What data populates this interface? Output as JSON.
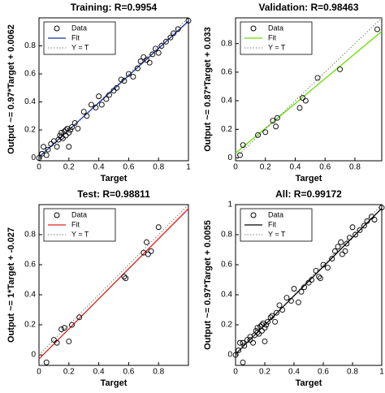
{
  "chart_data": [
    {
      "type": "scatter",
      "title": "Training: R=0.9954",
      "xlabel": "Target",
      "ylabel": "Output ~= 0.97*Target + 0.0062",
      "xlim": [
        0,
        1
      ],
      "ylim": [
        -0.02,
        1
      ],
      "xticks": [
        0,
        0.2,
        0.4,
        0.6,
        0.8,
        1
      ],
      "yticks": [
        0,
        0.2,
        0.4,
        0.6,
        0.8
      ],
      "legend": "upper left",
      "series": [
        {
          "name": "Data",
          "style": "marker",
          "color": "#000000",
          "x": [
            0,
            0.02,
            0.03,
            0.05,
            0.06,
            0.08,
            0.1,
            0.12,
            0.13,
            0.14,
            0.15,
            0.15,
            0.16,
            0.17,
            0.18,
            0.18,
            0.19,
            0.2,
            0.21,
            0.22,
            0.2,
            0.24,
            0.26,
            0.3,
            0.32,
            0.35,
            0.38,
            0.4,
            0.42,
            0.45,
            0.47,
            0.5,
            0.52,
            0.55,
            0.57,
            0.6,
            0.63,
            0.66,
            0.68,
            0.7,
            0.72,
            0.74,
            0.76,
            0.78,
            0.8,
            0.82,
            0.85,
            0.88,
            0.9,
            0.93,
            1
          ],
          "values": [
            0,
            0.03,
            0.08,
            0.02,
            0.06,
            0.1,
            0.12,
            0.08,
            0.13,
            0.16,
            0.15,
            0.18,
            0.14,
            0.19,
            0.2,
            0.16,
            0.21,
            0.18,
            0.2,
            0.22,
            0.08,
            0.25,
            0.21,
            0.33,
            0.3,
            0.38,
            0.36,
            0.44,
            0.38,
            0.42,
            0.45,
            0.48,
            0.5,
            0.56,
            0.55,
            0.6,
            0.58,
            0.64,
            0.69,
            0.72,
            0.7,
            0.68,
            0.74,
            0.78,
            0.75,
            0.8,
            0.83,
            0.86,
            0.89,
            0.92,
            0.98
          ]
        },
        {
          "name": "Fit",
          "style": "line",
          "color": "#1030a0",
          "x": [
            0,
            1
          ],
          "values": [
            0.0062,
            0.9762
          ]
        },
        {
          "name": "Y = T",
          "style": "dotted",
          "color": "#808080",
          "x": [
            0,
            1
          ],
          "values": [
            0,
            1
          ]
        }
      ]
    },
    {
      "type": "scatter",
      "title": "Validation: R=0.98463",
      "xlabel": "Target",
      "ylabel": "Output ~= 0.87*Target + 0.033",
      "xlim": [
        0,
        0.98
      ],
      "ylim": [
        -0.02,
        0.98
      ],
      "xticks": [
        0,
        0.2,
        0.4,
        0.6,
        0.8
      ],
      "yticks": [
        0,
        0.2,
        0.4,
        0.6,
        0.8
      ],
      "legend": "upper left",
      "series": [
        {
          "name": "Data",
          "style": "marker",
          "color": "#000000",
          "x": [
            0.03,
            0.05,
            0.15,
            0.2,
            0.25,
            0.27,
            0.28,
            0.43,
            0.45,
            0.47,
            0.55,
            0.7,
            0.95
          ],
          "values": [
            0.02,
            0.09,
            0.16,
            0.18,
            0.26,
            0.22,
            0.28,
            0.35,
            0.42,
            0.4,
            0.56,
            0.62,
            0.9
          ]
        },
        {
          "name": "Fit",
          "style": "line",
          "color": "#66dd00",
          "x": [
            0,
            0.98
          ],
          "values": [
            0.033,
            0.8856
          ]
        },
        {
          "name": "Y = T",
          "style": "dotted",
          "color": "#808080",
          "x": [
            0,
            0.98
          ],
          "values": [
            0,
            0.98
          ]
        }
      ]
    },
    {
      "type": "scatter",
      "title": "Test: R=0.98811",
      "xlabel": "Target",
      "ylabel": "Output ~= 1*Target + -0.027",
      "xlim": [
        0,
        1
      ],
      "ylim": [
        -0.07,
        1
      ],
      "xticks": [
        0,
        0.2,
        0.4,
        0.6,
        0.8
      ],
      "yticks": [
        0,
        0.2,
        0.4,
        0.6,
        0.8
      ],
      "legend": "upper left",
      "series": [
        {
          "name": "Data",
          "style": "marker",
          "color": "#000000",
          "x": [
            0.05,
            0.1,
            0.12,
            0.15,
            0.17,
            0.2,
            0.22,
            0.27,
            0.57,
            0.58,
            0.7,
            0.72,
            0.73,
            0.75,
            0.8
          ],
          "values": [
            -0.05,
            0.1,
            0.08,
            0.17,
            0.18,
            0.09,
            0.2,
            0.25,
            0.52,
            0.51,
            0.68,
            0.75,
            0.67,
            0.69,
            0.85
          ]
        },
        {
          "name": "Fit",
          "style": "line",
          "color": "#dd2020",
          "x": [
            0,
            1
          ],
          "values": [
            -0.027,
            0.973
          ]
        },
        {
          "name": "Y = T",
          "style": "dotted",
          "color": "#808080",
          "x": [
            0,
            1
          ],
          "values": [
            0,
            1
          ]
        }
      ]
    },
    {
      "type": "scatter",
      "title": "All: R=0.99172",
      "xlabel": "Target",
      "ylabel": "Output ~= 0.97*Target + 0.0055",
      "xlim": [
        0,
        1
      ],
      "ylim": [
        -0.07,
        1
      ],
      "xticks": [
        0,
        0.2,
        0.4,
        0.6,
        0.8,
        1
      ],
      "yticks": [
        0,
        0.2,
        0.4,
        0.6,
        0.8,
        1
      ],
      "legend": "upper left",
      "series": [
        {
          "name": "Data",
          "style": "marker",
          "color": "#000000",
          "x": [
            0,
            0.02,
            0.03,
            0.05,
            0.05,
            0.06,
            0.08,
            0.1,
            0.1,
            0.12,
            0.13,
            0.14,
            0.15,
            0.15,
            0.16,
            0.17,
            0.18,
            0.18,
            0.19,
            0.2,
            0.2,
            0.21,
            0.22,
            0.24,
            0.25,
            0.27,
            0.28,
            0.3,
            0.32,
            0.35,
            0.38,
            0.4,
            0.43,
            0.45,
            0.47,
            0.5,
            0.52,
            0.55,
            0.57,
            0.58,
            0.6,
            0.63,
            0.66,
            0.68,
            0.7,
            0.72,
            0.73,
            0.75,
            0.76,
            0.78,
            0.8,
            0.82,
            0.85,
            0.88,
            0.9,
            0.93,
            0.95,
            1
          ],
          "values": [
            0,
            0.03,
            0.08,
            -0.05,
            0.08,
            0.06,
            0.1,
            0.12,
            0.1,
            0.08,
            0.13,
            0.16,
            0.15,
            0.18,
            0.14,
            0.19,
            0.2,
            0.16,
            0.21,
            0.18,
            0.09,
            0.2,
            0.22,
            0.25,
            0.26,
            0.22,
            0.28,
            0.33,
            0.3,
            0.38,
            0.36,
            0.44,
            0.35,
            0.42,
            0.45,
            0.48,
            0.5,
            0.56,
            0.52,
            0.51,
            0.6,
            0.58,
            0.64,
            0.69,
            0.72,
            0.75,
            0.67,
            0.69,
            0.74,
            0.78,
            0.85,
            0.8,
            0.83,
            0.86,
            0.89,
            0.92,
            0.9,
            0.98
          ]
        },
        {
          "name": "Fit",
          "style": "line",
          "color": "#000000",
          "x": [
            0,
            1
          ],
          "values": [
            0.0055,
            0.9755
          ]
        },
        {
          "name": "Y = T",
          "style": "dotted",
          "color": "#808080",
          "x": [
            0,
            1
          ],
          "values": [
            0,
            1
          ]
        }
      ]
    }
  ]
}
